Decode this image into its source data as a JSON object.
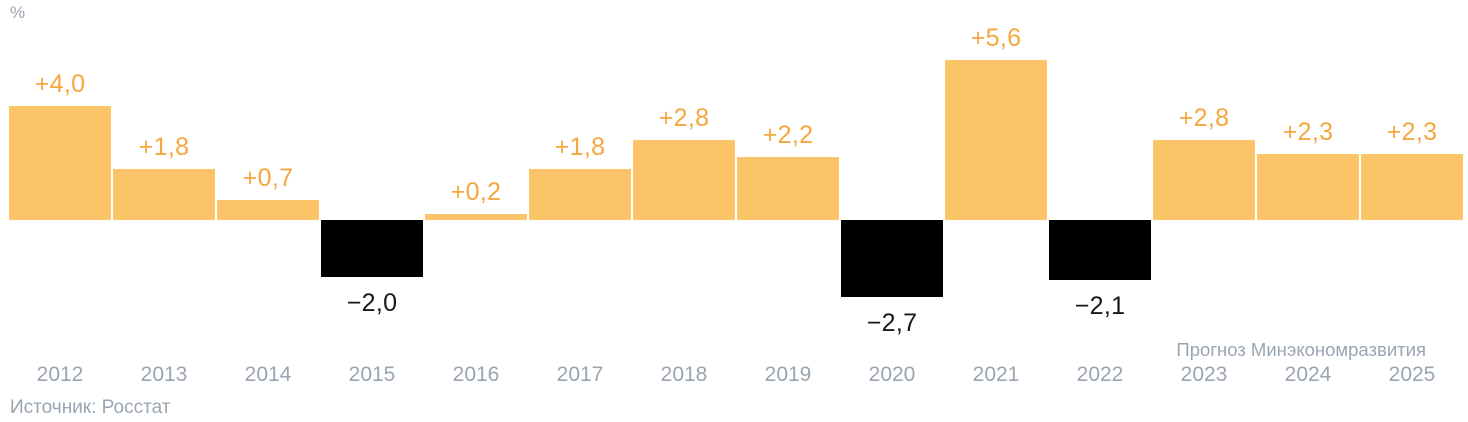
{
  "page": {
    "unit_label": "%",
    "forecast_note": "Прогноз Минэкономразвития",
    "source_note": "Источник: Росстат"
  },
  "colors": {
    "positive_bar": "#FBC469",
    "positive_label": "#F5A73E",
    "negative_bar": "#000000",
    "negative_label": "#17181B",
    "muted_text": "#9AA5B2"
  },
  "chart_data": {
    "type": "bar",
    "title": "",
    "unit": "%",
    "xlabel": "",
    "ylabel": "%",
    "ylim": [
      -3,
      6
    ],
    "grid": false,
    "legend": false,
    "categories": [
      "2012",
      "2013",
      "2014",
      "2015",
      "2016",
      "2017",
      "2018",
      "2019",
      "2020",
      "2021",
      "2022",
      "2023",
      "2024",
      "2025"
    ],
    "values": [
      4.0,
      1.8,
      0.7,
      -2.0,
      0.2,
      1.8,
      2.8,
      2.2,
      -2.7,
      5.6,
      -2.1,
      2.8,
      2.3,
      2.3
    ],
    "labels": [
      "+4,0",
      "+1,8",
      "+0,7",
      "−2,0",
      "+0,2",
      "+1,8",
      "+2,8",
      "+2,2",
      "−2,7",
      "+5,6",
      "−2,1",
      "+2,8",
      "+2,3",
      "+2,3"
    ],
    "forecast_categories": [
      "2023",
      "2024",
      "2025"
    ],
    "annotations": [
      "Прогноз Минэкономразвития"
    ]
  }
}
